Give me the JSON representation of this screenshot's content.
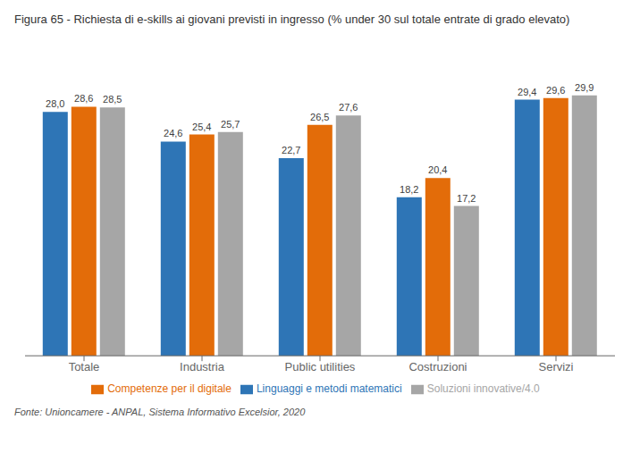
{
  "chart_data": {
    "type": "bar",
    "title": "Figura 65 - Richiesta di e-skills ai giovani previsti in ingresso (% under 30 sul totale entrate di grado elevato)",
    "categories": [
      "Totale",
      "Industria",
      "Public utilities",
      "Costruzioni",
      "Servizi"
    ],
    "series": [
      {
        "name": "Linguaggi e metodi matematici",
        "color": "#2E75B6",
        "values": [
          28.0,
          24.6,
          22.7,
          18.2,
          29.4
        ],
        "value_labels": [
          "28,0",
          "24,6",
          "22,7",
          "18,2",
          "29,4"
        ]
      },
      {
        "name": "Competenze per il digitale",
        "color": "#E36C09",
        "values": [
          28.6,
          25.4,
          26.5,
          20.4,
          29.6
        ],
        "value_labels": [
          "28,6",
          "25,4",
          "26,5",
          "20,4",
          "29,6"
        ]
      },
      {
        "name": "Soluzioni innovative/4.0",
        "color": "#A6A6A6",
        "values": [
          28.5,
          25.7,
          27.6,
          17.2,
          29.9
        ],
        "value_labels": [
          "28,5",
          "25,7",
          "27,6",
          "17,2",
          "29,9"
        ]
      }
    ],
    "ylim": [
      0,
      35
    ],
    "grid": false,
    "legend": "bottom",
    "data_labels": true,
    "tick_labels": "x",
    "annotations": [
      "Fonte: Unioncamere - ANPAL, Sistema Informativo Excelsior, 2020"
    ]
  }
}
